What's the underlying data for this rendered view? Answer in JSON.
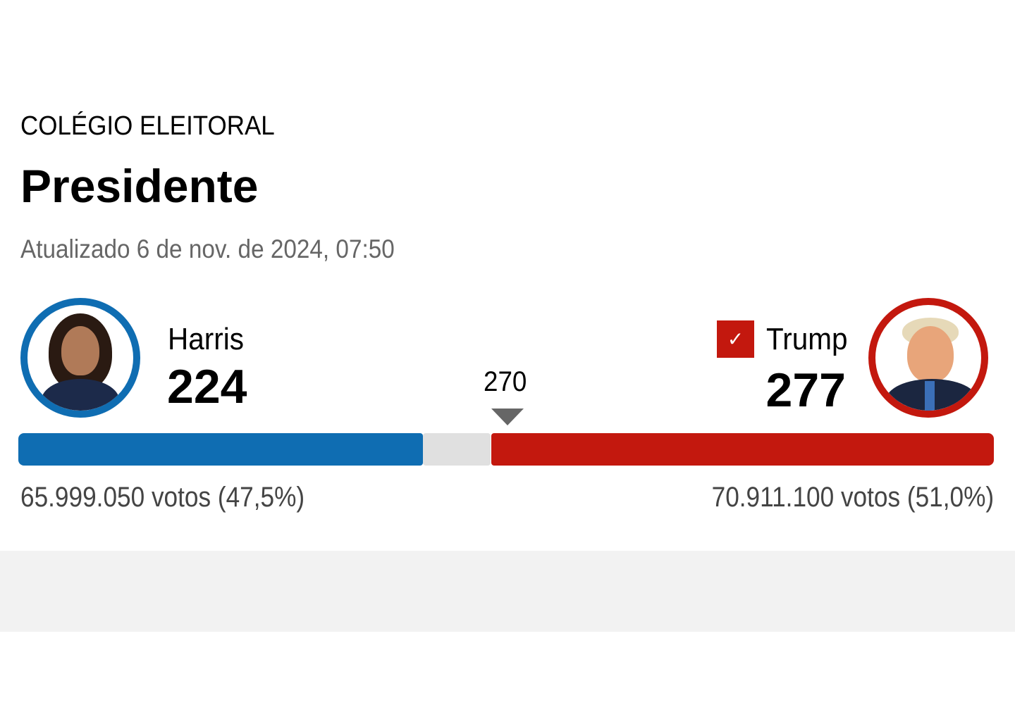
{
  "header": {
    "kicker": "COLÉGIO ELEITORAL",
    "title": "Presidente",
    "updated": "Atualizado 6 de nov. de 2024, 07:50"
  },
  "threshold": "270",
  "candidates": [
    {
      "name": "Harris",
      "electoral_votes": "224",
      "votes": "65.999.050 votos (47,5%)",
      "color": "#0f6db2",
      "winner": false
    },
    {
      "name": "Trump",
      "electoral_votes": "277",
      "votes": "70.911.100 votos (51,0%)",
      "color": "#c3180e",
      "winner": true
    }
  ],
  "winner_icon": "✓"
}
